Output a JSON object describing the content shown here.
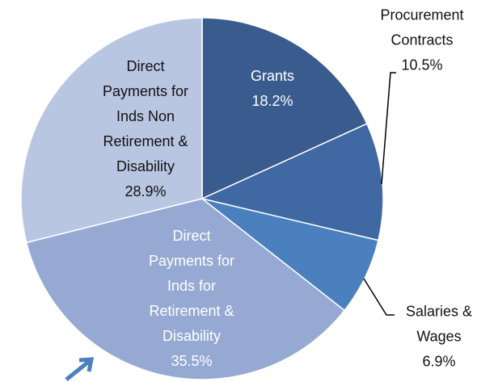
{
  "chart_data": {
    "type": "pie",
    "categories": [
      "Grants",
      "Procurement Contracts",
      "Salaries & Wages",
      "Direct Payments for Inds for Retirement & Disability",
      "Direct Payments for Inds Non Retirement & Disability"
    ],
    "values": [
      18.2,
      10.5,
      6.9,
      35.5,
      28.9
    ],
    "value_labels": [
      "18.2%",
      "10.5%",
      "6.9%",
      "35.5%",
      "28.9%"
    ],
    "colors": [
      "#3a5b8d",
      "#4068a2",
      "#4b80bf",
      "#95a9d3",
      "#b9c6e2"
    ]
  }
}
